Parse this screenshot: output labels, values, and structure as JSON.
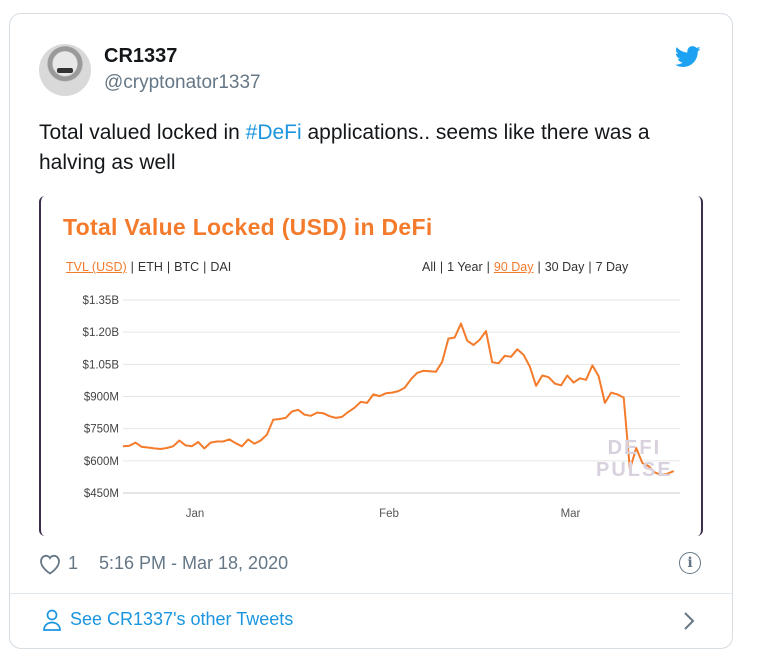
{
  "user": {
    "name": "CR1337",
    "handle": "@cryptonator1337"
  },
  "tweet": {
    "text_before": "Total valued locked in ",
    "hashtag": "#DeFi",
    "text_after": " applications.. seems like there was a halving as well"
  },
  "media": {
    "title": "Total Value Locked (USD) in DeFi",
    "metric_tabs": [
      "TVL (USD)",
      "ETH",
      "BTC",
      "DAI"
    ],
    "active_metric": "TVL (USD)",
    "range_tabs": [
      "All",
      "1 Year",
      "90 Day",
      "30 Day",
      "7 Day"
    ],
    "active_range": "90 Day",
    "watermark_line1": "DEFI",
    "watermark_line2": "PULSE"
  },
  "chart_data": {
    "type": "line",
    "title": "Total Value Locked (USD) in DeFi",
    "y_ticks": [
      "$1.35B",
      "$1.20B",
      "$1.05B",
      "$900M",
      "$750M",
      "$600M",
      "$450M"
    ],
    "y_tick_values": [
      1350,
      1200,
      1050,
      900,
      750,
      600,
      450
    ],
    "ylim": [
      450,
      1350
    ],
    "x_ticks": [
      "Jan",
      "Feb",
      "Mar"
    ],
    "x_tick_positions": [
      11.5,
      42.5,
      71.5
    ],
    "xlim": [
      0,
      89
    ],
    "color": "#f47b2b",
    "series": [
      {
        "values": [
          668,
          670,
          685,
          665,
          662,
          658,
          655,
          660,
          668,
          695,
          672,
          668,
          688,
          658,
          685,
          690,
          690,
          700,
          682,
          668,
          700,
          680,
          695,
          722,
          792,
          795,
          800,
          830,
          838,
          815,
          810,
          825,
          822,
          808,
          800,
          805,
          828,
          848,
          875,
          870,
          910,
          902,
          915,
          918,
          925,
          940,
          980,
          1010,
          1020,
          1018,
          1015,
          1062,
          1170,
          1175,
          1240,
          1160,
          1140,
          1165,
          1205,
          1060,
          1055,
          1090,
          1085,
          1120,
          1095,
          1040,
          950,
          998,
          990,
          960,
          952,
          998,
          965,
          985,
          978,
          1045,
          995,
          870,
          918,
          910,
          895,
          560,
          660,
          590,
          575,
          545,
          535,
          540,
          552
        ]
      }
    ],
    "ylabel": "",
    "xlabel": ""
  },
  "footer": {
    "like_count": "1",
    "timestamp": "5:16 PM - Mar 18, 2020",
    "other_tweets": "See CR1337's other Tweets"
  }
}
